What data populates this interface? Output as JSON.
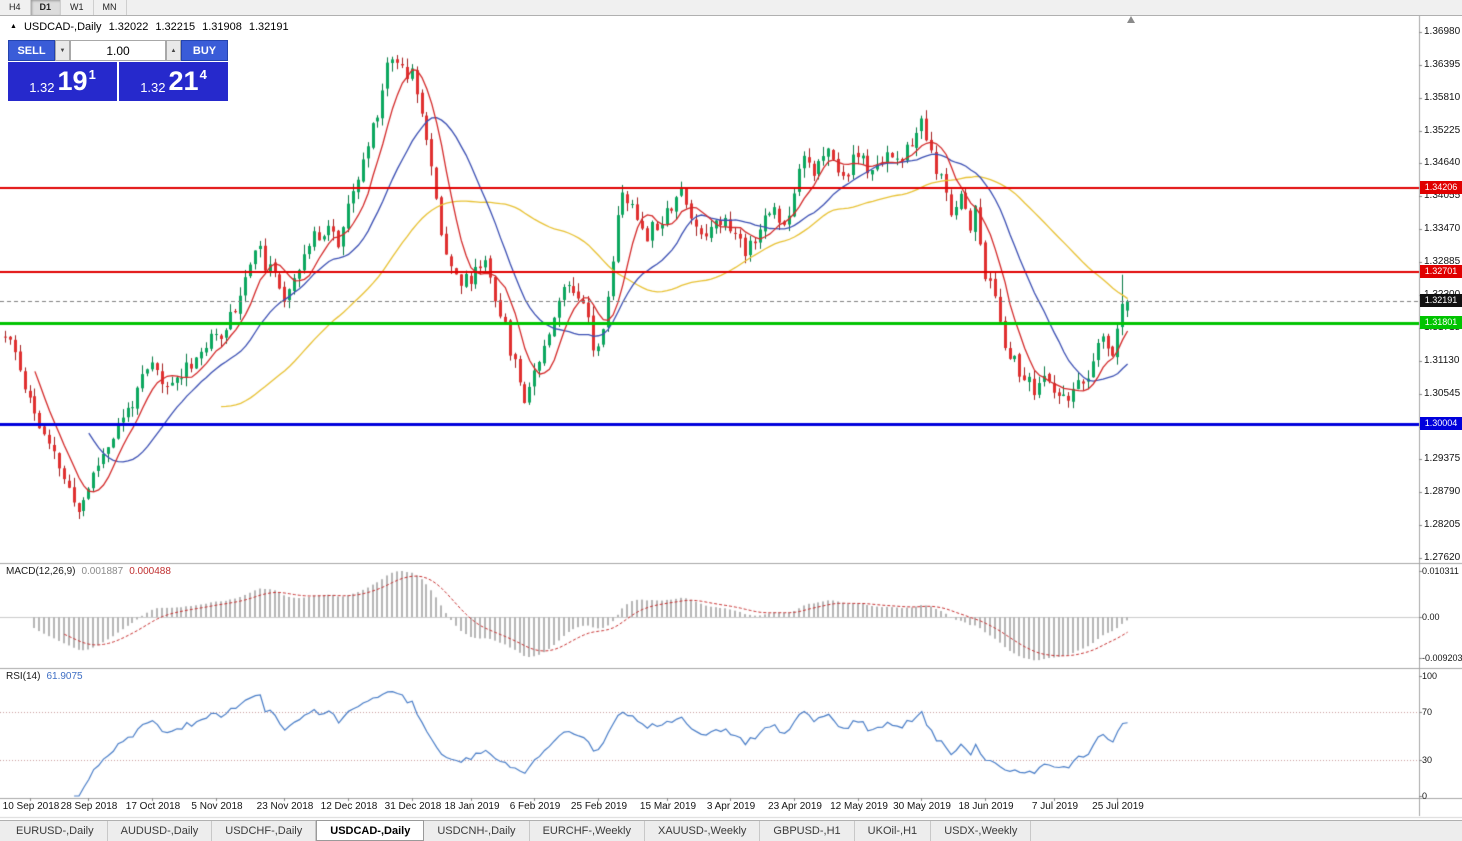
{
  "toolbar": {
    "timeframes": [
      {
        "label": "H4",
        "active": false
      },
      {
        "label": "D1",
        "active": true
      },
      {
        "label": "W1",
        "active": false
      },
      {
        "label": "MN",
        "active": false
      }
    ]
  },
  "header": {
    "arrow": "▲",
    "title": "USDCAD-,Daily",
    "open": "1.32022",
    "high": "1.32215",
    "low": "1.31908",
    "close": "1.32191"
  },
  "trade_panel": {
    "sell_label": "SELL",
    "buy_label": "BUY",
    "volume": "1.00",
    "spin_down_icon": "▼",
    "spin_up_icon": "▲",
    "sell_price": {
      "prefix": "1.32",
      "big": "19",
      "sup": "1"
    },
    "buy_price": {
      "prefix": "1.32",
      "big": "21",
      "sup": "4"
    }
  },
  "colors": {
    "bull": "#0ca85f",
    "bull_wick": "#0a7b46",
    "bear": "#e03030",
    "bear_wick": "#a52222",
    "ma_fast": "#d42a2a",
    "ma_mid": "#3c50b4",
    "ma_slow": "#e8c235",
    "macd_hist": "#b6b6b6",
    "macd_signal": "#c83232",
    "rsi_line": "#4a7ec8",
    "level_red": "#e00000",
    "level_green": "#00c400",
    "level_blue": "#0000dc",
    "current_box": "#101010",
    "panel_blue": "#2629cc",
    "button_blue": "#3a5cd8"
  },
  "chart_data": {
    "type": "candlestick",
    "symbol": "USDCAD-",
    "period": "Daily",
    "bars": 230,
    "seed": 11,
    "noise": 0.003,
    "wick": 0.0017,
    "gap": 0.0007,
    "waypoints": [
      [
        0,
        1.3155
      ],
      [
        2,
        1.3125
      ],
      [
        5,
        1.3045
      ],
      [
        8,
        1.2975
      ],
      [
        11,
        1.2925
      ],
      [
        13,
        1.288
      ],
      [
        15,
        1.2845
      ],
      [
        17,
        1.289
      ],
      [
        20,
        1.295
      ],
      [
        24,
        1.301
      ],
      [
        28,
        1.3075
      ],
      [
        30,
        1.3105
      ],
      [
        33,
        1.306
      ],
      [
        36,
        1.3095
      ],
      [
        40,
        1.313
      ],
      [
        43,
        1.3155
      ],
      [
        46,
        1.319
      ],
      [
        49,
        1.3255
      ],
      [
        51,
        1.332
      ],
      [
        54,
        1.327
      ],
      [
        57,
        1.323
      ],
      [
        60,
        1.3285
      ],
      [
        63,
        1.333
      ],
      [
        66,
        1.3355
      ],
      [
        68,
        1.332
      ],
      [
        70,
        1.338
      ],
      [
        73,
        1.3465
      ],
      [
        76,
        1.356
      ],
      [
        78,
        1.364
      ],
      [
        80,
        1.3655
      ],
      [
        82,
        1.362
      ],
      [
        83,
        1.3645
      ],
      [
        85,
        1.3555
      ],
      [
        87,
        1.345
      ],
      [
        89,
        1.3345
      ],
      [
        91,
        1.3285
      ],
      [
        93,
        1.325
      ],
      [
        95,
        1.326
      ],
      [
        98,
        1.3295
      ],
      [
        101,
        1.32
      ],
      [
        104,
        1.3105
      ],
      [
        106,
        1.305
      ],
      [
        108,
        1.3095
      ],
      [
        111,
        1.317
      ],
      [
        113,
        1.3225
      ],
      [
        115,
        1.325
      ],
      [
        118,
        1.323
      ],
      [
        120,
        1.314
      ],
      [
        122,
        1.316
      ],
      [
        124,
        1.33
      ],
      [
        126,
        1.342
      ],
      [
        128,
        1.338
      ],
      [
        131,
        1.334
      ],
      [
        135,
        1.338
      ],
      [
        138,
        1.342
      ],
      [
        140,
        1.336
      ],
      [
        143,
        1.334
      ],
      [
        145,
        1.337
      ],
      [
        148,
        1.335
      ],
      [
        151,
        1.331
      ],
      [
        154,
        1.335
      ],
      [
        157,
        1.3385
      ],
      [
        159,
        1.335
      ],
      [
        161,
        1.342
      ],
      [
        163,
        1.349
      ],
      [
        165,
        1.345
      ],
      [
        168,
        1.348
      ],
      [
        171,
        1.344
      ],
      [
        174,
        1.348
      ],
      [
        177,
        1.344
      ],
      [
        180,
        1.349
      ],
      [
        183,
        1.346
      ],
      [
        185,
        1.3505
      ],
      [
        187,
        1.353
      ],
      [
        189,
        1.348
      ],
      [
        191,
        1.343
      ],
      [
        193,
        1.337
      ],
      [
        195,
        1.342
      ],
      [
        197,
        1.334
      ],
      [
        198,
        1.339
      ],
      [
        200,
        1.327
      ],
      [
        202,
        1.322
      ],
      [
        204,
        1.315
      ],
      [
        206,
        1.311
      ],
      [
        208,
        1.308
      ],
      [
        210,
        1.306
      ],
      [
        212,
        1.3085
      ],
      [
        214,
        1.305
      ],
      [
        216,
        1.304
      ],
      [
        218,
        1.307
      ],
      [
        220,
        1.306
      ],
      [
        222,
        1.311
      ],
      [
        224,
        1.315
      ],
      [
        226,
        1.313
      ],
      [
        227,
        1.317
      ],
      [
        228,
        1.3205
      ],
      [
        229,
        1.32191
      ]
    ],
    "last_bar": {
      "o": 1.32022,
      "h": 1.32215,
      "l": 1.31908,
      "c": 1.32191
    },
    "prev_bar_high": 1.3266,
    "price_axis": {
      "ticks": [
        "1.36980",
        "1.36395",
        "1.35810",
        "1.35225",
        "1.34640",
        "1.34055",
        "1.33470",
        "1.32885",
        "1.32300",
        "1.31715",
        "1.31130",
        "1.30545",
        "1.29960",
        "1.29375",
        "1.28790",
        "1.28205",
        "1.27620"
      ]
    },
    "levels": [
      {
        "price": 1.34206,
        "label": "1.34206",
        "color": "level_red",
        "width": 2
      },
      {
        "price": 1.32701,
        "label": "1.32701",
        "color": "level_red",
        "width": 2
      },
      {
        "price": 1.31801,
        "label": "1.31801",
        "color": "level_green",
        "width": 3
      },
      {
        "price": 1.30004,
        "label": "1.30004",
        "color": "level_blue",
        "width": 3
      }
    ],
    "current_price": {
      "value": 1.32191,
      "label": "1.32191"
    },
    "moving_averages": [
      {
        "period": 45,
        "color": "ma_slow"
      },
      {
        "period": 18,
        "color": "ma_mid"
      },
      {
        "period": 7,
        "color": "ma_fast"
      }
    ],
    "macd": {
      "name": "MACD(12,26,9)",
      "main_value": "0.001887",
      "signal_value": "0.000488",
      "fast": 12,
      "slow": 26,
      "signal": 9,
      "axis": [
        {
          "value": 0.010311,
          "text": "0.010311"
        },
        {
          "value": 0,
          "text": "0.00"
        },
        {
          "value": -0.009203,
          "text": "-0.009203"
        }
      ]
    },
    "rsi": {
      "name": "RSI(14)",
      "value": "61.9075",
      "period": 14,
      "levels": [
        70,
        30
      ],
      "axis": [
        {
          "value": 100,
          "text": "100"
        },
        {
          "value": 70,
          "text": "70"
        },
        {
          "value": 30,
          "text": "30"
        },
        {
          "value": 0,
          "text": "0"
        }
      ]
    },
    "dates": [
      {
        "text": "10 Sep 2018",
        "bar": 5
      },
      {
        "text": "28 Sep 2018",
        "bar": 17
      },
      {
        "text": "17 Oct 2018",
        "bar": 30
      },
      {
        "text": "5 Nov 2018",
        "bar": 43
      },
      {
        "text": "23 Nov 2018",
        "bar": 57
      },
      {
        "text": "12 Dec 2018",
        "bar": 70
      },
      {
        "text": "31 Dec 2018",
        "bar": 83
      },
      {
        "text": "18 Jan 2019",
        "bar": 95
      },
      {
        "text": "6 Feb 2019",
        "bar": 108
      },
      {
        "text": "25 Feb 2019",
        "bar": 121
      },
      {
        "text": "15 Mar 2019",
        "bar": 135
      },
      {
        "text": "3 Apr 2019",
        "bar": 148
      },
      {
        "text": "23 Apr 2019",
        "bar": 161
      },
      {
        "text": "12 May 2019",
        "bar": 174
      },
      {
        "text": "30 May 2019",
        "bar": 187
      },
      {
        "text": "18 Jun 2019",
        "bar": 200
      },
      {
        "text": "7 Jul 2019",
        "bar": 214
      },
      {
        "text": "25 Jul 2019",
        "bar": 227
      }
    ]
  },
  "tabs": [
    {
      "label": "EURUSD-,Daily",
      "active": false
    },
    {
      "label": "AUDUSD-,Daily",
      "active": false
    },
    {
      "label": "USDCHF-,Daily",
      "active": false
    },
    {
      "label": "USDCAD-,Daily",
      "active": true
    },
    {
      "label": "USDCNH-,Daily",
      "active": false
    },
    {
      "label": "EURCHF-,Weekly",
      "active": false
    },
    {
      "label": "XAUUSD-,Weekly",
      "active": false
    },
    {
      "label": "GBPUSD-,H1",
      "active": false
    },
    {
      "label": "UKOil-,H1",
      "active": false
    },
    {
      "label": "USDX-,Weekly",
      "active": false
    }
  ]
}
